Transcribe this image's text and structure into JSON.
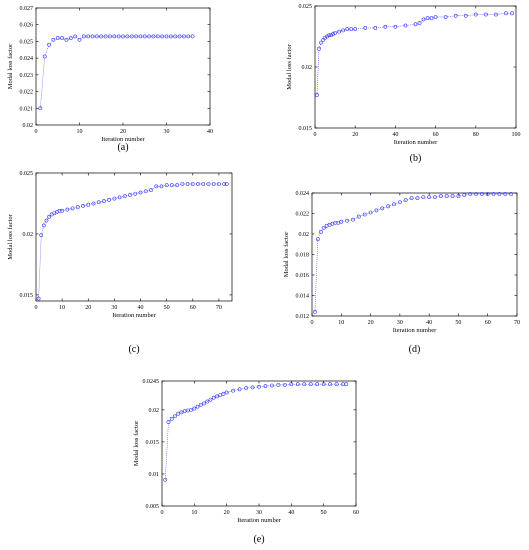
{
  "style": {
    "series_color": "#3333ff"
  },
  "chart_data": [
    {
      "type": "line",
      "panel": "(a)",
      "xlabel": "Iteration number",
      "ylabel": "Modal loss factor",
      "xlim": [
        0,
        40
      ],
      "ylim": [
        0.02,
        0.027
      ],
      "xticks": [
        "0",
        "10",
        "20",
        "30",
        "40"
      ],
      "yticks": [
        "0.02",
        "0.021",
        "0.022",
        "0.023",
        "0.024",
        "0.025",
        "0.026",
        "0.027"
      ],
      "series": [
        {
          "x": [
            1,
            2,
            3,
            4,
            5,
            6,
            7,
            8,
            9,
            10,
            11,
            12,
            13,
            14,
            15,
            16,
            17,
            18,
            19,
            20,
            21,
            22,
            23,
            24,
            25,
            26,
            27,
            28,
            29,
            30,
            31,
            32,
            33,
            34,
            35,
            36
          ],
          "y": [
            0.021,
            0.0241,
            0.0248,
            0.0251,
            0.0252,
            0.0252,
            0.0251,
            0.0252,
            0.0253,
            0.0251,
            0.0253,
            0.0253,
            0.0253,
            0.0253,
            0.0253,
            0.0253,
            0.0253,
            0.0253,
            0.0253,
            0.0253,
            0.0253,
            0.0253,
            0.0253,
            0.0253,
            0.0253,
            0.0253,
            0.0253,
            0.0253,
            0.0253,
            0.0253,
            0.0253,
            0.0253,
            0.0253,
            0.0253,
            0.0253,
            0.0253
          ]
        }
      ]
    },
    {
      "type": "line",
      "panel": "(b)",
      "xlabel": "Iteration number",
      "ylabel": "Modal loss factor",
      "xlim": [
        0,
        100
      ],
      "ylim": [
        0.015,
        0.025
      ],
      "xticks": [
        "0",
        "20",
        "40",
        "60",
        "80",
        "100"
      ],
      "yticks": [
        "0.015",
        "0.02",
        "0.025"
      ],
      "series": [
        {
          "x": [
            1,
            2,
            3,
            4,
            5,
            6,
            7,
            8,
            9,
            10,
            12,
            14,
            16,
            18,
            20,
            25,
            30,
            35,
            40,
            45,
            50,
            52,
            54,
            56,
            58,
            60,
            65,
            70,
            75,
            80,
            85,
            90,
            95,
            98
          ],
          "y": [
            0.0177,
            0.0215,
            0.022,
            0.0222,
            0.0224,
            0.0225,
            0.0226,
            0.0226,
            0.0227,
            0.0228,
            0.0229,
            0.023,
            0.0231,
            0.0231,
            0.0231,
            0.0232,
            0.0232,
            0.0233,
            0.0233,
            0.0234,
            0.0235,
            0.0236,
            0.0239,
            0.024,
            0.024,
            0.0241,
            0.0241,
            0.0242,
            0.0242,
            0.0243,
            0.0243,
            0.0243,
            0.0244,
            0.0244
          ]
        }
      ]
    },
    {
      "type": "line",
      "panel": "(c)",
      "xlabel": "Iteration number",
      "ylabel": "Modal loss factor",
      "xlim": [
        0,
        75
      ],
      "ylim": [
        0.0145,
        0.025
      ],
      "xticks": [
        "0",
        "10",
        "20",
        "30",
        "40",
        "50",
        "60",
        "70"
      ],
      "yticks": [
        "0.015",
        "0.02",
        "0.025"
      ],
      "series": [
        {
          "x": [
            1,
            2,
            3,
            4,
            5,
            6,
            7,
            8,
            9,
            10,
            12,
            14,
            16,
            18,
            20,
            22,
            24,
            26,
            28,
            30,
            32,
            34,
            36,
            38,
            40,
            42,
            44,
            46,
            48,
            50,
            52,
            54,
            56,
            58,
            60,
            62,
            64,
            66,
            68,
            70,
            72,
            73
          ],
          "y": [
            0.0147,
            0.0199,
            0.0207,
            0.0211,
            0.0214,
            0.0216,
            0.0217,
            0.0218,
            0.0219,
            0.0219,
            0.022,
            0.0221,
            0.0222,
            0.0223,
            0.0224,
            0.0225,
            0.0226,
            0.0227,
            0.0228,
            0.0229,
            0.023,
            0.0231,
            0.0232,
            0.0233,
            0.0234,
            0.0235,
            0.0236,
            0.0239,
            0.0239,
            0.024,
            0.024,
            0.024,
            0.0241,
            0.0241,
            0.0241,
            0.0241,
            0.0241,
            0.0241,
            0.0241,
            0.0241,
            0.0241,
            0.0241
          ]
        }
      ]
    },
    {
      "type": "line",
      "panel": "(d)",
      "xlabel": "Iteration number",
      "ylabel": "Modal loss factor",
      "xlim": [
        0,
        70
      ],
      "ylim": [
        0.012,
        0.024
      ],
      "xticks": [
        "0",
        "10",
        "20",
        "30",
        "40",
        "50",
        "60",
        "70"
      ],
      "yticks": [
        "0.012",
        "0.014",
        "0.016",
        "0.018",
        "0.02",
        "0.022",
        "0.024"
      ],
      "series": [
        {
          "x": [
            1,
            2,
            3,
            4,
            5,
            6,
            7,
            8,
            9,
            10,
            12,
            14,
            16,
            18,
            20,
            22,
            24,
            26,
            28,
            30,
            32,
            34,
            36,
            38,
            40,
            42,
            44,
            46,
            48,
            50,
            52,
            54,
            56,
            58,
            60,
            62,
            64,
            66,
            68
          ],
          "y": [
            0.0124,
            0.0195,
            0.0202,
            0.0206,
            0.0208,
            0.0209,
            0.021,
            0.0211,
            0.0211,
            0.0212,
            0.0213,
            0.0214,
            0.0217,
            0.0219,
            0.0221,
            0.0223,
            0.0225,
            0.0227,
            0.0229,
            0.0231,
            0.0233,
            0.0235,
            0.0235,
            0.0236,
            0.0236,
            0.0236,
            0.0237,
            0.0237,
            0.0237,
            0.0237,
            0.0238,
            0.0239,
            0.0239,
            0.0239,
            0.0239,
            0.0239,
            0.0239,
            0.0239,
            0.0239
          ]
        }
      ]
    },
    {
      "type": "line",
      "panel": "(e)",
      "xlabel": "Iteration number",
      "ylabel": "Modal loss factor",
      "xlim": [
        0,
        60
      ],
      "ylim": [
        0.005,
        0.0245
      ],
      "xticks": [
        "0",
        "10",
        "20",
        "30",
        "40",
        "50",
        "60"
      ],
      "yticks": [
        "0.005",
        "0.01",
        "0.015",
        "0.02",
        "0.0245"
      ],
      "series": [
        {
          "x": [
            1,
            2,
            3,
            4,
            5,
            6,
            7,
            8,
            9,
            10,
            11,
            12,
            13,
            14,
            15,
            16,
            17,
            18,
            19,
            20,
            22,
            24,
            26,
            28,
            30,
            32,
            34,
            36,
            38,
            40,
            42,
            44,
            46,
            48,
            50,
            52,
            54,
            56,
            57
          ],
          "y": [
            0.0091,
            0.0181,
            0.0186,
            0.019,
            0.0194,
            0.0196,
            0.0198,
            0.0199,
            0.02,
            0.0202,
            0.0205,
            0.0208,
            0.021,
            0.0213,
            0.0216,
            0.0219,
            0.0221,
            0.0223,
            0.0225,
            0.0227,
            0.023,
            0.0232,
            0.0234,
            0.0235,
            0.0236,
            0.0237,
            0.0238,
            0.0239,
            0.0239,
            0.024,
            0.024,
            0.024,
            0.024,
            0.024,
            0.024,
            0.024,
            0.024,
            0.024,
            0.024
          ]
        }
      ]
    }
  ]
}
